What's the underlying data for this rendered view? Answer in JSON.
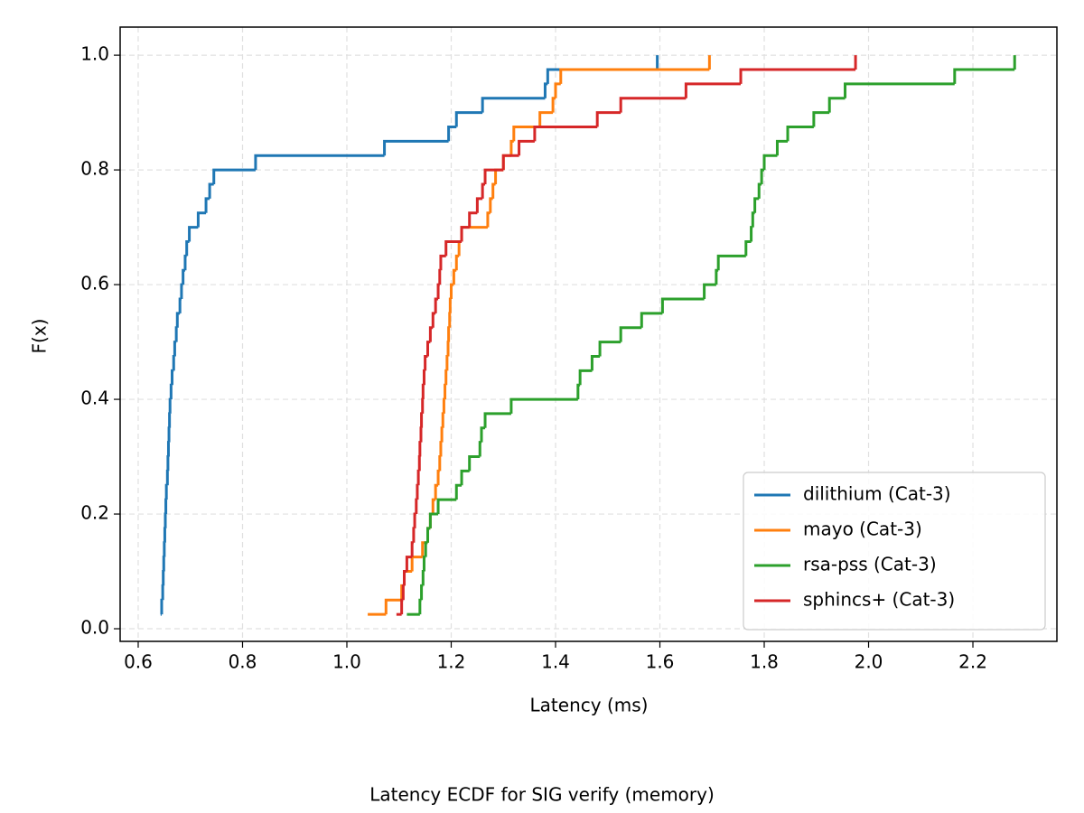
{
  "chart_data": {
    "type": "ecdf",
    "drawstyle": "steps-post",
    "title": "Latency ECDF for SIG verify (memory)",
    "x_label": "Latency (ms)",
    "y_label": "F(x)",
    "xlim": [
      0.5654,
      2.361
    ],
    "ylim": [
      -0.022,
      1.049
    ],
    "xticks": [
      0.6,
      0.8,
      {
        "value": 1.0,
        "label": "1.0"
      },
      1.2,
      1.4,
      1.6,
      1.8,
      {
        "value": 2.0,
        "label": "2.0"
      },
      2.2
    ],
    "yticks": [
      {
        "value": 0.0,
        "label": "0.0"
      },
      0.2,
      0.4,
      0.6,
      0.8,
      {
        "value": 1.0,
        "label": "1.0"
      }
    ],
    "grid": true,
    "legend_position": "lower-right",
    "series": [
      {
        "name": "dilithium (Cat-3)",
        "color": "#1f77b4",
        "x": [
          0.643,
          0.645,
          0.647,
          0.648,
          0.649,
          0.65,
          0.651,
          0.652,
          0.653,
          0.654,
          0.656,
          0.657,
          0.658,
          0.659,
          0.66,
          0.661,
          0.663,
          0.665,
          0.668,
          0.67,
          0.673,
          0.675,
          0.68,
          0.683,
          0.686,
          0.69,
          0.693,
          0.698,
          0.715,
          0.73,
          0.737,
          0.745,
          0.825,
          1.072,
          1.195,
          1.21,
          1.26,
          1.38,
          1.385,
          1.595
        ],
        "values": [
          0.025,
          0.05,
          0.075,
          0.1,
          0.125,
          0.15,
          0.175,
          0.2,
          0.225,
          0.25,
          0.275,
          0.3,
          0.325,
          0.35,
          0.375,
          0.4,
          0.425,
          0.45,
          0.475,
          0.5,
          0.525,
          0.55,
          0.575,
          0.6,
          0.625,
          0.65,
          0.675,
          0.7,
          0.725,
          0.75,
          0.775,
          0.8,
          0.825,
          0.85,
          0.875,
          0.9,
          0.925,
          0.95,
          0.975,
          1.0
        ]
      },
      {
        "name": "mayo (Cat-3)",
        "color": "#ff7f0e",
        "x": [
          1.04,
          1.075,
          1.105,
          1.11,
          1.125,
          1.145,
          1.155,
          1.16,
          1.165,
          1.17,
          1.175,
          1.178,
          1.18,
          1.182,
          1.184,
          1.186,
          1.188,
          1.19,
          1.192,
          1.194,
          1.195,
          1.197,
          1.198,
          1.2,
          1.205,
          1.21,
          1.215,
          1.22,
          1.27,
          1.275,
          1.28,
          1.285,
          1.3,
          1.315,
          1.32,
          1.37,
          1.395,
          1.4,
          1.41,
          1.695
        ],
        "values": [
          0.025,
          0.05,
          0.075,
          0.1,
          0.125,
          0.15,
          0.175,
          0.2,
          0.225,
          0.25,
          0.275,
          0.3,
          0.325,
          0.35,
          0.375,
          0.4,
          0.425,
          0.45,
          0.475,
          0.5,
          0.525,
          0.55,
          0.575,
          0.6,
          0.625,
          0.65,
          0.675,
          0.7,
          0.725,
          0.75,
          0.775,
          0.8,
          0.825,
          0.85,
          0.875,
          0.9,
          0.925,
          0.95,
          0.975,
          1.0
        ]
      },
      {
        "name": "rsa-pss (Cat-3)",
        "color": "#2ca02c",
        "x": [
          1.115,
          1.14,
          1.143,
          1.146,
          1.148,
          1.151,
          1.155,
          1.16,
          1.175,
          1.21,
          1.22,
          1.235,
          1.255,
          1.258,
          1.265,
          1.315,
          1.443,
          1.447,
          1.47,
          1.485,
          1.525,
          1.565,
          1.605,
          1.685,
          1.708,
          1.712,
          1.765,
          1.775,
          1.778,
          1.782,
          1.79,
          1.795,
          1.8,
          1.825,
          1.845,
          1.895,
          1.925,
          1.955,
          2.165,
          2.28
        ],
        "values": [
          0.025,
          0.05,
          0.075,
          0.1,
          0.125,
          0.15,
          0.175,
          0.2,
          0.225,
          0.25,
          0.275,
          0.3,
          0.325,
          0.35,
          0.375,
          0.4,
          0.425,
          0.45,
          0.475,
          0.5,
          0.525,
          0.55,
          0.575,
          0.6,
          0.625,
          0.65,
          0.675,
          0.7,
          0.725,
          0.75,
          0.775,
          0.8,
          0.825,
          0.85,
          0.875,
          0.9,
          0.925,
          0.95,
          0.975,
          1.0
        ]
      },
      {
        "name": "sphincs+ (Cat-3)",
        "color": "#d62728",
        "x": [
          1.095,
          1.105,
          1.108,
          1.11,
          1.115,
          1.125,
          1.128,
          1.13,
          1.133,
          1.135,
          1.137,
          1.139,
          1.14,
          1.142,
          1.143,
          1.145,
          1.146,
          1.148,
          1.15,
          1.155,
          1.16,
          1.165,
          1.17,
          1.175,
          1.178,
          1.18,
          1.19,
          1.22,
          1.235,
          1.25,
          1.26,
          1.265,
          1.3,
          1.33,
          1.36,
          1.48,
          1.525,
          1.65,
          1.755,
          1.975
        ],
        "values": [
          0.025,
          0.05,
          0.075,
          0.1,
          0.125,
          0.15,
          0.175,
          0.2,
          0.225,
          0.25,
          0.275,
          0.3,
          0.325,
          0.35,
          0.375,
          0.4,
          0.425,
          0.45,
          0.475,
          0.5,
          0.525,
          0.55,
          0.575,
          0.6,
          0.625,
          0.65,
          0.675,
          0.7,
          0.725,
          0.75,
          0.775,
          0.8,
          0.825,
          0.85,
          0.875,
          0.9,
          0.925,
          0.95,
          0.975,
          1.0
        ]
      }
    ]
  }
}
